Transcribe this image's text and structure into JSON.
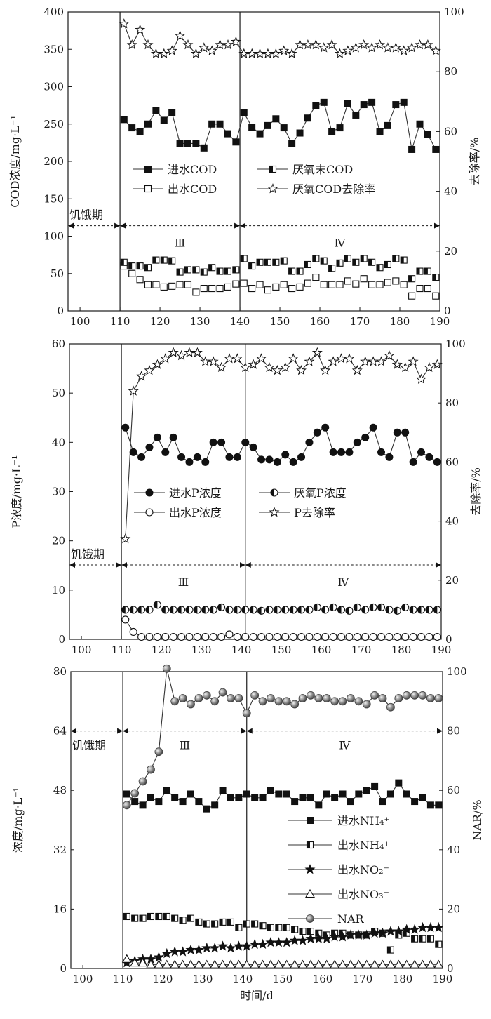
{
  "chart_data": [
    {
      "type": "line",
      "xlabel": "",
      "ylabel": "COD浓度/mg·L⁻¹",
      "y2label": "去除率/%",
      "xlim": [
        97,
        190
      ],
      "ylim": [
        0,
        400
      ],
      "y2lim": [
        0,
        100
      ],
      "xticks": [
        "100",
        "110",
        "120",
        "130",
        "140",
        "150",
        "160",
        "170",
        "180",
        "190"
      ],
      "yticks": [
        "0",
        "50",
        "100",
        "150",
        "200",
        "250",
        "300",
        "350",
        "400"
      ],
      "y2ticks": [
        "0",
        "20",
        "40",
        "60",
        "80",
        "100"
      ],
      "grid": false,
      "legend_position": "center-left",
      "dividers": [
        110,
        140
      ],
      "phase_labels": [
        {
          "text": "饥饿期",
          "x0": 97,
          "x1": 110
        },
        {
          "text": "Ⅲ",
          "x0": 110,
          "x1": 140
        },
        {
          "text": "Ⅳ",
          "x0": 140,
          "x1": 190
        }
      ],
      "arrow_y": 114,
      "x": [
        111,
        113,
        115,
        117,
        119,
        121,
        123,
        125,
        127,
        129,
        131,
        133,
        135,
        137,
        139,
        141,
        143,
        145,
        147,
        149,
        151,
        153,
        155,
        157,
        159,
        161,
        163,
        165,
        167,
        169,
        171,
        173,
        175,
        177,
        179,
        181,
        183,
        185,
        187,
        189
      ],
      "series": [
        {
          "name": "进水COD",
          "marker": "square-filled",
          "axis": "left",
          "connected": true,
          "values": [
            256,
            245,
            240,
            250,
            268,
            255,
            265,
            224,
            224,
            224,
            218,
            250,
            250,
            237,
            226,
            265,
            246,
            237,
            248,
            257,
            245,
            224,
            238,
            258,
            275,
            279,
            240,
            245,
            277,
            262,
            276,
            279,
            240,
            248,
            276,
            279,
            216,
            250,
            236,
            216
          ]
        },
        {
          "name": "出水COD",
          "marker": "square-open",
          "axis": "left",
          "connected": false,
          "values": [
            60,
            50,
            42,
            35,
            35,
            32,
            33,
            35,
            35,
            25,
            30,
            30,
            30,
            32,
            36,
            37,
            30,
            35,
            28,
            32,
            35,
            30,
            32,
            37,
            45,
            35,
            35,
            35,
            40,
            36,
            43,
            35,
            35,
            38,
            40,
            35,
            20,
            30,
            30,
            20
          ]
        },
        {
          "name": "厌氧末COD",
          "marker": "square-half",
          "axis": "left",
          "connected": false,
          "values": [
            65,
            60,
            60,
            58,
            68,
            68,
            67,
            52,
            55,
            55,
            52,
            58,
            53,
            53,
            55,
            70,
            60,
            65,
            65,
            65,
            67,
            53,
            53,
            62,
            70,
            67,
            57,
            64,
            70,
            65,
            70,
            65,
            58,
            62,
            70,
            68,
            43,
            53,
            53,
            45
          ]
        },
        {
          "name": "厌氧COD去除率",
          "marker": "star-open",
          "axis": "right",
          "connected": true,
          "values": [
            96,
            89,
            94,
            89,
            86,
            86,
            87,
            92,
            89,
            86,
            88,
            87,
            89,
            89,
            90,
            86,
            86,
            86,
            86,
            86,
            87,
            86,
            89,
            89,
            89,
            88,
            89,
            86,
            87,
            88,
            89,
            88,
            89,
            88,
            88,
            87,
            88,
            89,
            89,
            87
          ]
        }
      ],
      "legend_cols": [
        [
          "进水COD",
          "出水COD"
        ],
        [
          "厌氧末COD",
          "厌氧COD去除率"
        ]
      ]
    },
    {
      "type": "line",
      "xlabel": "",
      "ylabel": "P浓度/mg·L⁻¹",
      "y2label": "去除率/%",
      "xlim": [
        97,
        190
      ],
      "ylim": [
        0,
        60
      ],
      "y2lim": [
        0,
        100
      ],
      "xticks": [
        "100",
        "110",
        "120",
        "130",
        "140",
        "150",
        "160",
        "170",
        "180",
        "190"
      ],
      "yticks": [
        "0",
        "10",
        "20",
        "30",
        "40",
        "50",
        "60"
      ],
      "y2ticks": [
        "0",
        "20",
        "40",
        "60",
        "80",
        "100"
      ],
      "grid": false,
      "legend_position": "center-left",
      "dividers": [
        110,
        141
      ],
      "phase_labels": [
        {
          "text": "饥饿期",
          "x0": 97,
          "x1": 110
        },
        {
          "text": "Ⅲ",
          "x0": 110,
          "x1": 141
        },
        {
          "text": "Ⅳ",
          "x0": 141,
          "x1": 190
        }
      ],
      "arrow_y": 15.1,
      "x": [
        111,
        113,
        115,
        117,
        119,
        121,
        123,
        125,
        127,
        129,
        131,
        133,
        135,
        137,
        139,
        141,
        143,
        145,
        147,
        149,
        151,
        153,
        155,
        157,
        159,
        161,
        163,
        165,
        167,
        169,
        171,
        173,
        175,
        177,
        179,
        181,
        183,
        185,
        187,
        189
      ],
      "series": [
        {
          "name": "进水P浓度",
          "marker": "circle-filled",
          "axis": "left",
          "connected": true,
          "values": [
            43,
            38,
            37,
            39,
            41,
            38,
            41,
            37,
            36,
            37,
            36,
            40,
            40,
            37,
            37,
            40,
            39,
            36.5,
            36.5,
            36,
            37.5,
            36,
            37,
            40,
            42,
            43,
            38,
            38,
            38,
            40,
            41,
            43,
            38,
            37,
            42,
            42,
            36,
            38,
            37,
            36
          ]
        },
        {
          "name": "出水P浓度",
          "marker": "circle-open",
          "axis": "left",
          "connected": true,
          "values": [
            4,
            1.5,
            0.5,
            0.5,
            0.5,
            0.5,
            0.5,
            0.5,
            0.5,
            0.5,
            0.5,
            0.5,
            0.5,
            1,
            0.5,
            0.5,
            0.5,
            0.5,
            0.5,
            0.5,
            0.5,
            0.5,
            0.5,
            0.5,
            0.5,
            0.5,
            0.5,
            0.5,
            0.5,
            0.5,
            0.5,
            0.5,
            0.5,
            0.5,
            0.5,
            0.5,
            0.5,
            0.5,
            0.5,
            0.5
          ]
        },
        {
          "name": "厌氧P浓度",
          "marker": "circle-half",
          "axis": "left",
          "connected": false,
          "values": [
            6,
            6,
            6,
            6,
            7,
            6,
            6,
            6,
            6,
            6,
            6,
            6,
            6.5,
            6,
            6,
            6,
            6,
            5.8,
            6,
            6,
            6,
            6,
            6,
            6,
            6.5,
            6,
            6.5,
            6,
            5.8,
            6.5,
            6,
            6.5,
            6.5,
            6,
            5.8,
            6.5,
            6,
            6,
            6,
            6
          ]
        },
        {
          "name": "P去除率",
          "marker": "star-open",
          "axis": "right",
          "connected": true,
          "values": [
            34,
            84,
            89,
            91,
            93,
            95,
            97,
            96,
            97,
            97,
            94,
            94,
            92,
            95,
            95,
            92,
            93,
            95,
            92,
            91,
            92,
            95,
            91,
            94,
            97,
            91,
            94,
            95,
            95,
            91,
            94,
            94,
            94,
            96,
            93,
            92,
            94,
            88,
            92,
            93
          ]
        }
      ],
      "legend_cols": [
        [
          "进水P浓度",
          "出水P浓度"
        ],
        [
          "厌氧P浓度",
          "P去除率"
        ]
      ]
    },
    {
      "type": "line",
      "xlabel": "时间/d",
      "ylabel": "浓度/mg·L⁻¹",
      "y2label": "NAR/%",
      "xlim": [
        97,
        190
      ],
      "ylim": [
        0,
        80
      ],
      "y2lim": [
        0,
        100
      ],
      "xticks": [
        "100",
        "110",
        "120",
        "130",
        "140",
        "150",
        "160",
        "170",
        "180",
        "190"
      ],
      "yticks": [
        "0",
        "16",
        "32",
        "48",
        "64",
        "80"
      ],
      "y2ticks": [
        "0",
        "20",
        "40",
        "60",
        "80",
        "100"
      ],
      "grid": false,
      "legend_position": "bottom-right",
      "dividers": [
        110,
        141
      ],
      "phase_labels": [
        {
          "text": "饥饿期",
          "x0": 97,
          "x1": 110
        },
        {
          "text": "Ⅲ",
          "x0": 110,
          "x1": 141
        },
        {
          "text": "Ⅳ",
          "x0": 141,
          "x1": 190
        }
      ],
      "arrow_y": 64,
      "x": [
        111,
        113,
        115,
        117,
        119,
        121,
        123,
        125,
        127,
        129,
        131,
        133,
        135,
        137,
        139,
        141,
        143,
        145,
        147,
        149,
        151,
        153,
        155,
        157,
        159,
        161,
        163,
        165,
        167,
        169,
        171,
        173,
        175,
        177,
        179,
        181,
        183,
        185,
        187,
        189
      ],
      "series": [
        {
          "name": "进水NH₄⁺",
          "marker": "square-filled",
          "axis": "left",
          "connected": true,
          "values": [
            47,
            45,
            44,
            46,
            45,
            48,
            46,
            45,
            47,
            45,
            43,
            44,
            48,
            46,
            46,
            47,
            46,
            46,
            48,
            47,
            47,
            45,
            46,
            46,
            44,
            47,
            46,
            47,
            45,
            47,
            48,
            49,
            45,
            47,
            50,
            47,
            45,
            46,
            44,
            44
          ]
        },
        {
          "name": "出水NH₄⁺",
          "marker": "square-half",
          "axis": "left",
          "connected": false,
          "values": [
            14,
            13.5,
            13.5,
            14,
            14,
            14,
            13.5,
            13,
            13.5,
            12.5,
            12,
            12,
            12.5,
            12.5,
            11,
            12,
            12,
            11.5,
            11,
            11,
            11,
            10.5,
            10,
            10,
            9.5,
            9,
            9.5,
            9.5,
            9,
            9,
            9,
            10,
            9.5,
            5,
            9,
            9.5,
            8,
            8,
            8,
            6.5
          ]
        },
        {
          "name": "出水NO₂⁻",
          "marker": "star-filled",
          "axis": "left",
          "connected": true,
          "values": [
            1.5,
            2,
            2.5,
            2.5,
            3,
            4,
            4.5,
            4.5,
            5,
            5,
            5.5,
            5.5,
            6,
            5.5,
            6,
            6,
            6.5,
            6.5,
            7,
            7,
            7,
            7.5,
            7.5,
            8,
            8,
            8,
            8.5,
            8.5,
            9,
            9,
            9,
            9.5,
            9.5,
            10,
            10,
            10.5,
            10.5,
            11,
            11,
            11
          ]
        },
        {
          "name": "出水NO₃⁻",
          "marker": "triangle-open",
          "axis": "left",
          "connected": true,
          "values": [
            2.5,
            1.5,
            1.5,
            1,
            1,
            1,
            1,
            1,
            1,
            1,
            1,
            1,
            1,
            1,
            1,
            1,
            1,
            1,
            1,
            1,
            1,
            1,
            1,
            1,
            1,
            1,
            1,
            1,
            1,
            1,
            1,
            1,
            1,
            1,
            1,
            1,
            1,
            1,
            1,
            1
          ]
        },
        {
          "name": "NAR",
          "marker": "sphere",
          "axis": "right",
          "connected": true,
          "values": [
            55,
            59,
            63,
            67,
            73,
            101,
            90,
            91,
            89,
            91,
            92,
            90,
            93,
            91,
            91,
            86,
            92,
            90,
            91,
            90,
            90,
            89,
            91,
            92,
            91,
            91,
            90,
            90,
            91,
            90,
            89,
            92,
            91,
            88,
            91,
            92,
            92,
            92,
            91,
            91
          ]
        }
      ],
      "legend_cols": [
        [
          "进水NH₄⁺",
          "出水NH₄⁺",
          "出水NO₂⁻",
          "出水NO₃⁻",
          "NAR"
        ]
      ]
    }
  ]
}
